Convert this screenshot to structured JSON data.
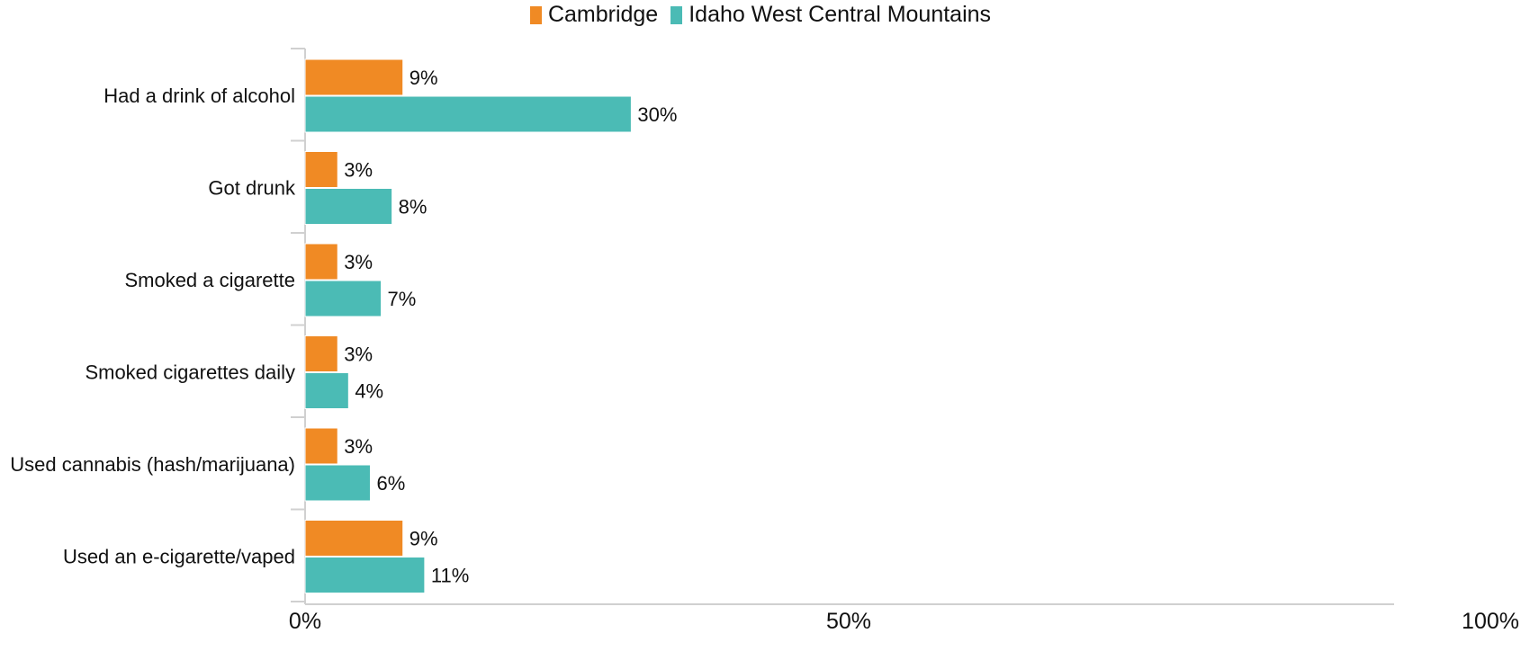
{
  "chart_data": {
    "type": "bar",
    "orientation": "horizontal",
    "categories": [
      "Had a drink of alcohol",
      "Got drunk",
      "Smoked a cigarette",
      "Smoked cigarettes daily",
      "Used cannabis (hash/marijuana)",
      "Used an e-cigarette/vaped"
    ],
    "series": [
      {
        "name": "Cambridge",
        "color": "#f08a24",
        "values": [
          9,
          3,
          3,
          3,
          3,
          9
        ],
        "labels": [
          "9%",
          "3%",
          "3%",
          "3%",
          "3%",
          "9%"
        ]
      },
      {
        "name": "Idaho West Central Mountains",
        "color": "#4bbbb5",
        "values": [
          30,
          8,
          7,
          4,
          6,
          11
        ],
        "labels": [
          "30%",
          "8%",
          "7%",
          "4%",
          "6%",
          "11%"
        ]
      }
    ],
    "xlim": [
      0,
      100
    ],
    "xticks": [
      0,
      50,
      100
    ],
    "xtick_labels": [
      "0%",
      "50%",
      "100%"
    ],
    "grid": false,
    "legend_position": "top-center",
    "title": "",
    "xlabel": "",
    "ylabel": ""
  }
}
